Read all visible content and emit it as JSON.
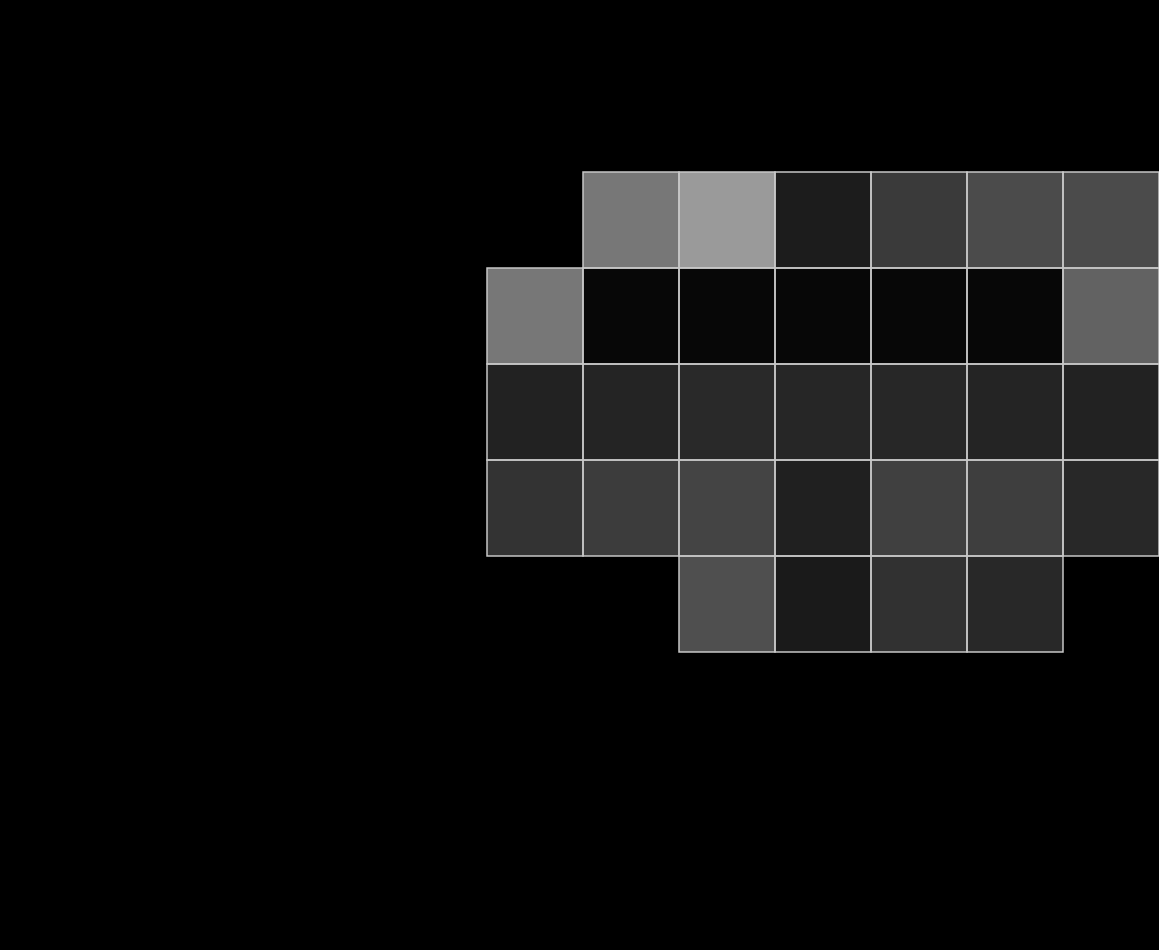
{
  "chart_data": {
    "type": "heatmap",
    "cells": [
      [
        0,
        119,
        154,
        28,
        58,
        75,
        75
      ],
      [
        119,
        7,
        7,
        7,
        7,
        7,
        98
      ],
      [
        34,
        36,
        41,
        38,
        39,
        36,
        34
      ],
      [
        51,
        60,
        68,
        32,
        64,
        62,
        40
      ],
      [
        0,
        0,
        79,
        26,
        49,
        40,
        0
      ]
    ],
    "zlim": [
      0,
      255
    ],
    "grid": true,
    "tick_labels": false
  }
}
